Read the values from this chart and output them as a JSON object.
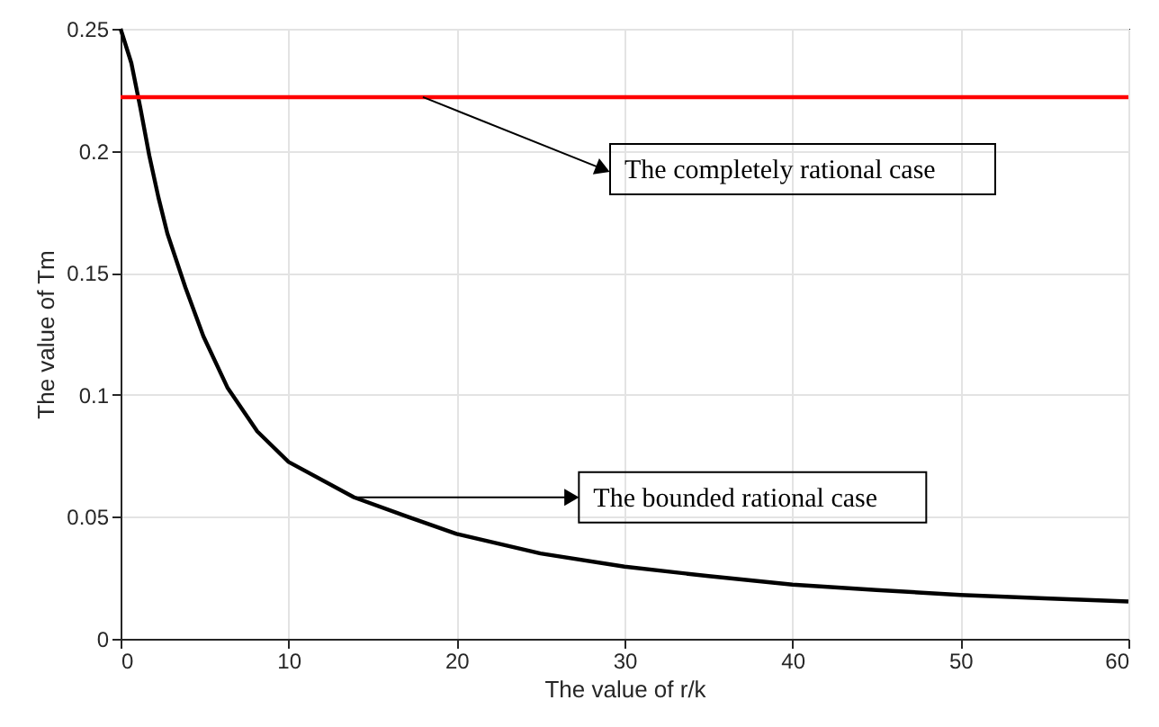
{
  "chart_data": {
    "type": "line",
    "xlabel": "The value of r/k",
    "ylabel": "The value of Tm",
    "xlim": [
      0,
      60
    ],
    "ylim": [
      0,
      0.25
    ],
    "xticks": [
      0,
      10,
      20,
      30,
      40,
      50,
      60
    ],
    "yticks": [
      0,
      0.05,
      0.1,
      0.15,
      0.2,
      0.25
    ],
    "grid": true,
    "marker": "none",
    "line_style": "solid",
    "series": [
      {
        "color": "#000000",
        "x": [
          0,
          0.64,
          1.18,
          1.71,
          2.25,
          2.79,
          3.86,
          4.93,
          6.36,
          8.14,
          10,
          13.9,
          17.1,
          20,
          25,
          30,
          35,
          40,
          45,
          50,
          55,
          60
        ],
        "values": [
          0.25,
          0.236,
          0.2175,
          0.198,
          0.181,
          0.166,
          0.144,
          0.124,
          0.103,
          0.085,
          0.0725,
          0.058,
          0.05,
          0.043,
          0.035,
          0.0296,
          0.0257,
          0.0222,
          0.02,
          0.018,
          0.0166,
          0.0153
        ]
      },
      {
        "color": "#ff0000",
        "x": [
          0,
          60
        ],
        "values": [
          0.222,
          0.222
        ]
      }
    ],
    "annotations": [
      {
        "text": "The completely rational case",
        "x": 18,
        "y": 0.222
      },
      {
        "text": "The bounded rational case",
        "x": 14,
        "y": 0.058
      }
    ]
  }
}
